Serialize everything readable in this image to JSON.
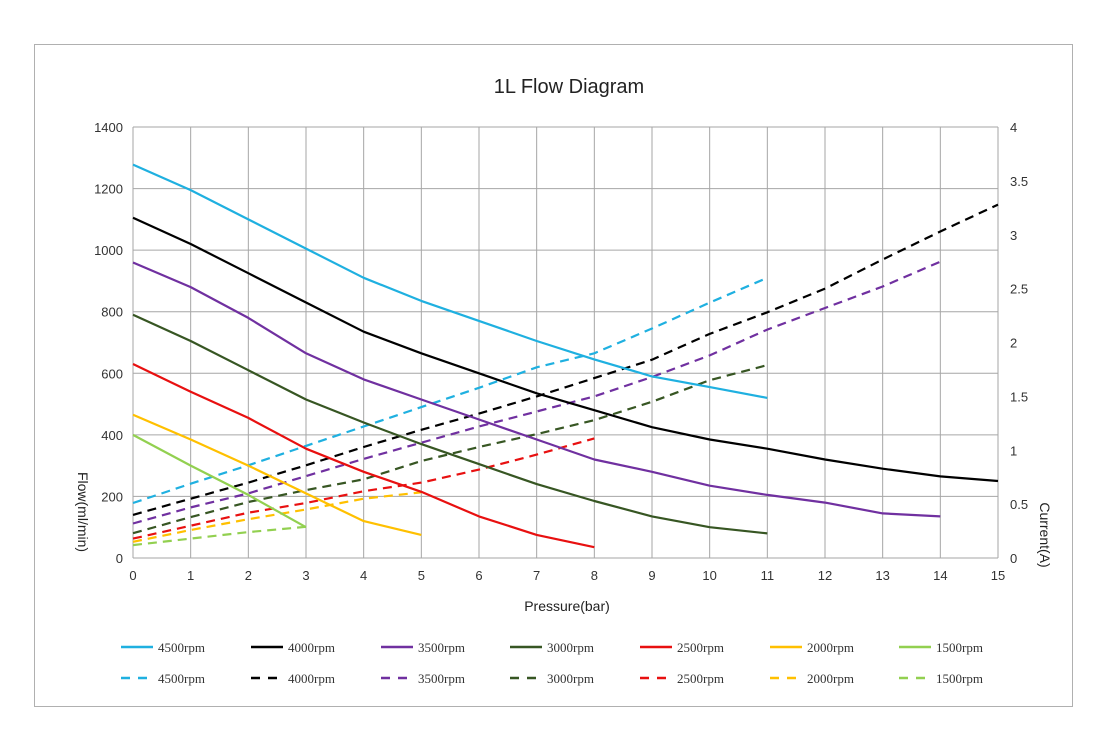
{
  "chart_data": {
    "type": "line",
    "title": "1L Flow Diagram",
    "xlabel": "Pressure(bar)",
    "ylabel": "Flow(ml/min)",
    "y2label": "Current(A)",
    "xlim": [
      0,
      15
    ],
    "ylim": [
      0,
      1400
    ],
    "y2lim": [
      0,
      4
    ],
    "xticks": [
      "0",
      "1",
      "2",
      "3",
      "4",
      "5",
      "6",
      "7",
      "8",
      "9",
      "10",
      "11",
      "12",
      "13",
      "14",
      "15"
    ],
    "yticks": [
      "0",
      "200",
      "400",
      "600",
      "800",
      "1000",
      "1200",
      "1400"
    ],
    "y2ticks": [
      "0",
      "0.5",
      "1",
      "1.5",
      "2",
      "2.5",
      "3",
      "3.5",
      "4"
    ],
    "grid": true,
    "legend_position": "bottom",
    "flow_series": [
      {
        "name": "4500rpm",
        "color": "#1fb0e0",
        "values": [
          1278,
          1195,
          1100,
          1005,
          910,
          835,
          770,
          705,
          645,
          590,
          555,
          520
        ]
      },
      {
        "name": "4000rpm",
        "color": "#000000",
        "values": [
          1105,
          1020,
          925,
          830,
          735,
          665,
          600,
          535,
          480,
          425,
          385,
          355,
          320,
          290,
          265,
          250
        ]
      },
      {
        "name": "3500rpm",
        "color": "#7030a0",
        "values": [
          960,
          880,
          780,
          665,
          580,
          515,
          450,
          385,
          320,
          280,
          235,
          205,
          180,
          145,
          135
        ]
      },
      {
        "name": "3000rpm",
        "color": "#375623",
        "values": [
          790,
          705,
          610,
          515,
          440,
          370,
          305,
          240,
          185,
          135,
          100,
          80
        ]
      },
      {
        "name": "2500rpm",
        "color": "#e81010",
        "values": [
          630,
          540,
          455,
          355,
          280,
          215,
          135,
          75,
          35
        ]
      },
      {
        "name": "2000rpm",
        "color": "#ffc000",
        "values": [
          465,
          385,
          300,
          210,
          120,
          75
        ]
      },
      {
        "name": "1500rpm",
        "color": "#92d050",
        "values": [
          400,
          300,
          205,
          100
        ]
      }
    ],
    "current_series": [
      {
        "name": "4500rpm",
        "color": "#1fb0e0",
        "values": [
          0.51,
          0.69,
          0.86,
          1.04,
          1.22,
          1.4,
          1.58,
          1.77,
          1.9,
          2.13,
          2.37,
          2.6
        ]
      },
      {
        "name": "4000rpm",
        "color": "#000000",
        "values": [
          0.4,
          0.55,
          0.7,
          0.86,
          1.03,
          1.19,
          1.34,
          1.5,
          1.67,
          1.84,
          2.08,
          2.28,
          2.5,
          2.77,
          3.03,
          3.28
        ]
      },
      {
        "name": "3500rpm",
        "color": "#7030a0",
        "values": [
          0.32,
          0.47,
          0.6,
          0.76,
          0.92,
          1.07,
          1.22,
          1.36,
          1.5,
          1.68,
          1.88,
          2.12,
          2.32,
          2.52,
          2.75
        ]
      },
      {
        "name": "3000rpm",
        "color": "#375623",
        "values": [
          0.23,
          0.38,
          0.52,
          0.63,
          0.73,
          0.9,
          1.03,
          1.15,
          1.28,
          1.45,
          1.65,
          1.79
        ]
      },
      {
        "name": "2500rpm",
        "color": "#e81010",
        "values": [
          0.18,
          0.3,
          0.42,
          0.51,
          0.62,
          0.7,
          0.82,
          0.96,
          1.11
        ]
      },
      {
        "name": "2000rpm",
        "color": "#ffc000",
        "values": [
          0.15,
          0.26,
          0.36,
          0.45,
          0.55,
          0.61
        ]
      },
      {
        "name": "1500rpm",
        "color": "#92d050",
        "values": [
          0.12,
          0.18,
          0.24,
          0.29
        ]
      }
    ]
  }
}
